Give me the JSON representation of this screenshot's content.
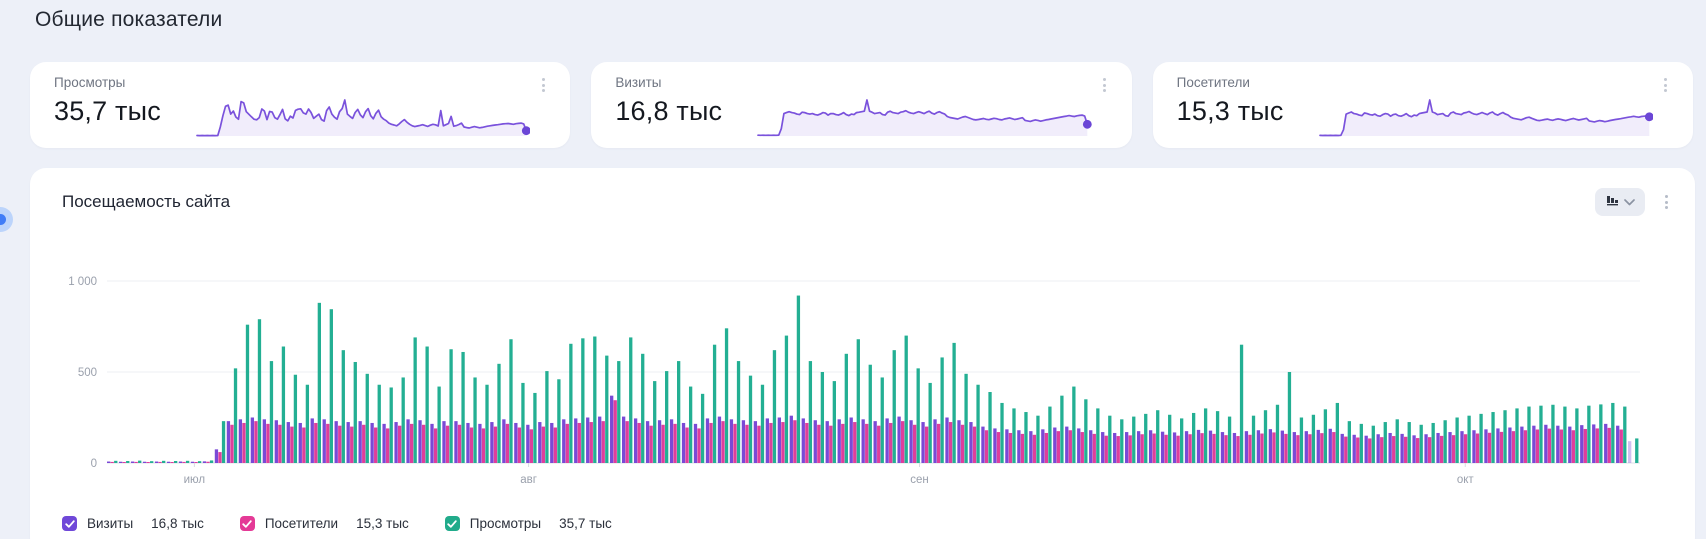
{
  "page": {
    "title": "Общие показатели",
    "background": "#edf0f8"
  },
  "summary_cards": [
    {
      "label": "Просмотры",
      "value": "35,7 тыс",
      "menu_icon": "kebab-menu-icon",
      "series_index": 2
    },
    {
      "label": "Визиты",
      "value": "16,8 тыс",
      "menu_icon": "kebab-menu-icon",
      "series_index": 0
    },
    {
      "label": "Посетители",
      "value": "15,3 тыс",
      "menu_icon": "kebab-menu-icon",
      "series_index": 1
    }
  ],
  "traffic_card": {
    "title": "Посещаемость сайта",
    "controls": {
      "chart_type_button": {
        "icon": "bar-chart-icon",
        "chevron": "chevron-down-icon"
      },
      "menu_icon": "kebab-menu-icon"
    }
  },
  "colors": {
    "visits": "#7a49d6",
    "visitors": "#de3e9c",
    "views": "#23af93",
    "sparkline": "#7a52dc",
    "sparkline_dot": "#6b46d6",
    "sparkline_fill": "rgba(122,82,220,0.10)",
    "grid": "#edeff3",
    "axis_line": "#dfe2e9",
    "axis_text": "#9aa0ac",
    "legend_check_visits": "#6f48d8",
    "legend_check_visitors": "#e43a96",
    "legend_check_views": "#21ab8b"
  },
  "chart_data": {
    "type": "bar",
    "title": "Посещаемость сайта",
    "ylim": [
      0,
      1000
    ],
    "yticks": [
      {
        "value": 0,
        "label": "0"
      },
      {
        "value": 500,
        "label": "500"
      },
      {
        "value": 1000,
        "label": "1 000"
      }
    ],
    "xticks": [
      {
        "label": "июл",
        "position": 0.057
      },
      {
        "label": "авг",
        "position": 0.275
      },
      {
        "label": "сен",
        "position": 0.53
      },
      {
        "label": "окт",
        "position": 0.886
      }
    ],
    "grid": "horizontal",
    "legend_position": "bottom",
    "partial_last_group": true,
    "series": [
      {
        "name": "Визиты",
        "total_label": "16,8 тыс",
        "color": "#7a49d6",
        "values": [
          8,
          7,
          8,
          7,
          8,
          7,
          8,
          7,
          9,
          75,
          230,
          240,
          250,
          240,
          235,
          225,
          220,
          245,
          240,
          230,
          225,
          230,
          220,
          215,
          225,
          240,
          235,
          215,
          230,
          230,
          220,
          215,
          225,
          240,
          220,
          210,
          225,
          220,
          240,
          245,
          250,
          255,
          370,
          255,
          245,
          230,
          235,
          240,
          220,
          215,
          245,
          255,
          240,
          235,
          230,
          245,
          250,
          260,
          245,
          235,
          230,
          240,
          250,
          240,
          230,
          245,
          255,
          235,
          225,
          240,
          250,
          235,
          225,
          200,
          190,
          185,
          180,
          175,
          185,
          195,
          200,
          190,
          180,
          170,
          165,
          170,
          175,
          180,
          172,
          168,
          175,
          182,
          178,
          170,
          165,
          175,
          180,
          186,
          178,
          170,
          175,
          182,
          188,
          160,
          155,
          150,
          158,
          165,
          160,
          152,
          158,
          165,
          170,
          175,
          180,
          185,
          190,
          195,
          200,
          205,
          210,
          205,
          200,
          208,
          212,
          215,
          205,
          120
        ]
      },
      {
        "name": "Посетители",
        "total_label": "15,3 тыс",
        "color": "#de3e9c",
        "values": [
          6,
          5,
          6,
          5,
          6,
          5,
          6,
          5,
          7,
          60,
          210,
          220,
          230,
          215,
          210,
          200,
          195,
          220,
          215,
          205,
          200,
          210,
          195,
          190,
          205,
          215,
          210,
          190,
          205,
          210,
          195,
          190,
          200,
          215,
          195,
          185,
          200,
          195,
          215,
          220,
          225,
          230,
          345,
          230,
          220,
          205,
          210,
          215,
          195,
          190,
          220,
          230,
          215,
          210,
          205,
          220,
          225,
          235,
          220,
          210,
          205,
          215,
          225,
          215,
          205,
          220,
          230,
          210,
          200,
          215,
          225,
          210,
          200,
          180,
          170,
          165,
          160,
          155,
          165,
          175,
          180,
          170,
          160,
          150,
          148,
          152,
          158,
          162,
          155,
          150,
          158,
          164,
          160,
          153,
          148,
          155,
          162,
          168,
          160,
          153,
          158,
          164,
          170,
          145,
          140,
          135,
          142,
          148,
          144,
          137,
          142,
          149,
          153,
          158,
          162,
          166,
          171,
          175,
          180,
          184,
          189,
          184,
          180,
          187,
          190,
          193,
          184,
          0
        ]
      },
      {
        "name": "Просмотры",
        "total_label": "35,7 тыс",
        "color": "#23af93",
        "values": [
          12,
          11,
          13,
          10,
          12,
          11,
          12,
          10,
          14,
          230,
          520,
          760,
          790,
          560,
          640,
          485,
          430,
          880,
          845,
          620,
          555,
          490,
          430,
          415,
          470,
          690,
          640,
          420,
          625,
          610,
          470,
          430,
          545,
          680,
          440,
          385,
          505,
          460,
          655,
          685,
          695,
          590,
          560,
          690,
          600,
          450,
          505,
          560,
          420,
          380,
          650,
          740,
          560,
          480,
          430,
          620,
          700,
          920,
          560,
          500,
          450,
          600,
          680,
          540,
          470,
          620,
          700,
          520,
          440,
          580,
          660,
          490,
          430,
          390,
          330,
          300,
          280,
          260,
          310,
          370,
          420,
          350,
          300,
          260,
          240,
          255,
          270,
          290,
          265,
          245,
          275,
          300,
          285,
          255,
          650,
          260,
          290,
          320,
          500,
          250,
          265,
          295,
          330,
          230,
          215,
          205,
          225,
          240,
          225,
          210,
          220,
          235,
          250,
          260,
          270,
          280,
          290,
          300,
          310,
          315,
          320,
          310,
          300,
          315,
          322,
          330,
          310,
          135
        ]
      }
    ]
  }
}
